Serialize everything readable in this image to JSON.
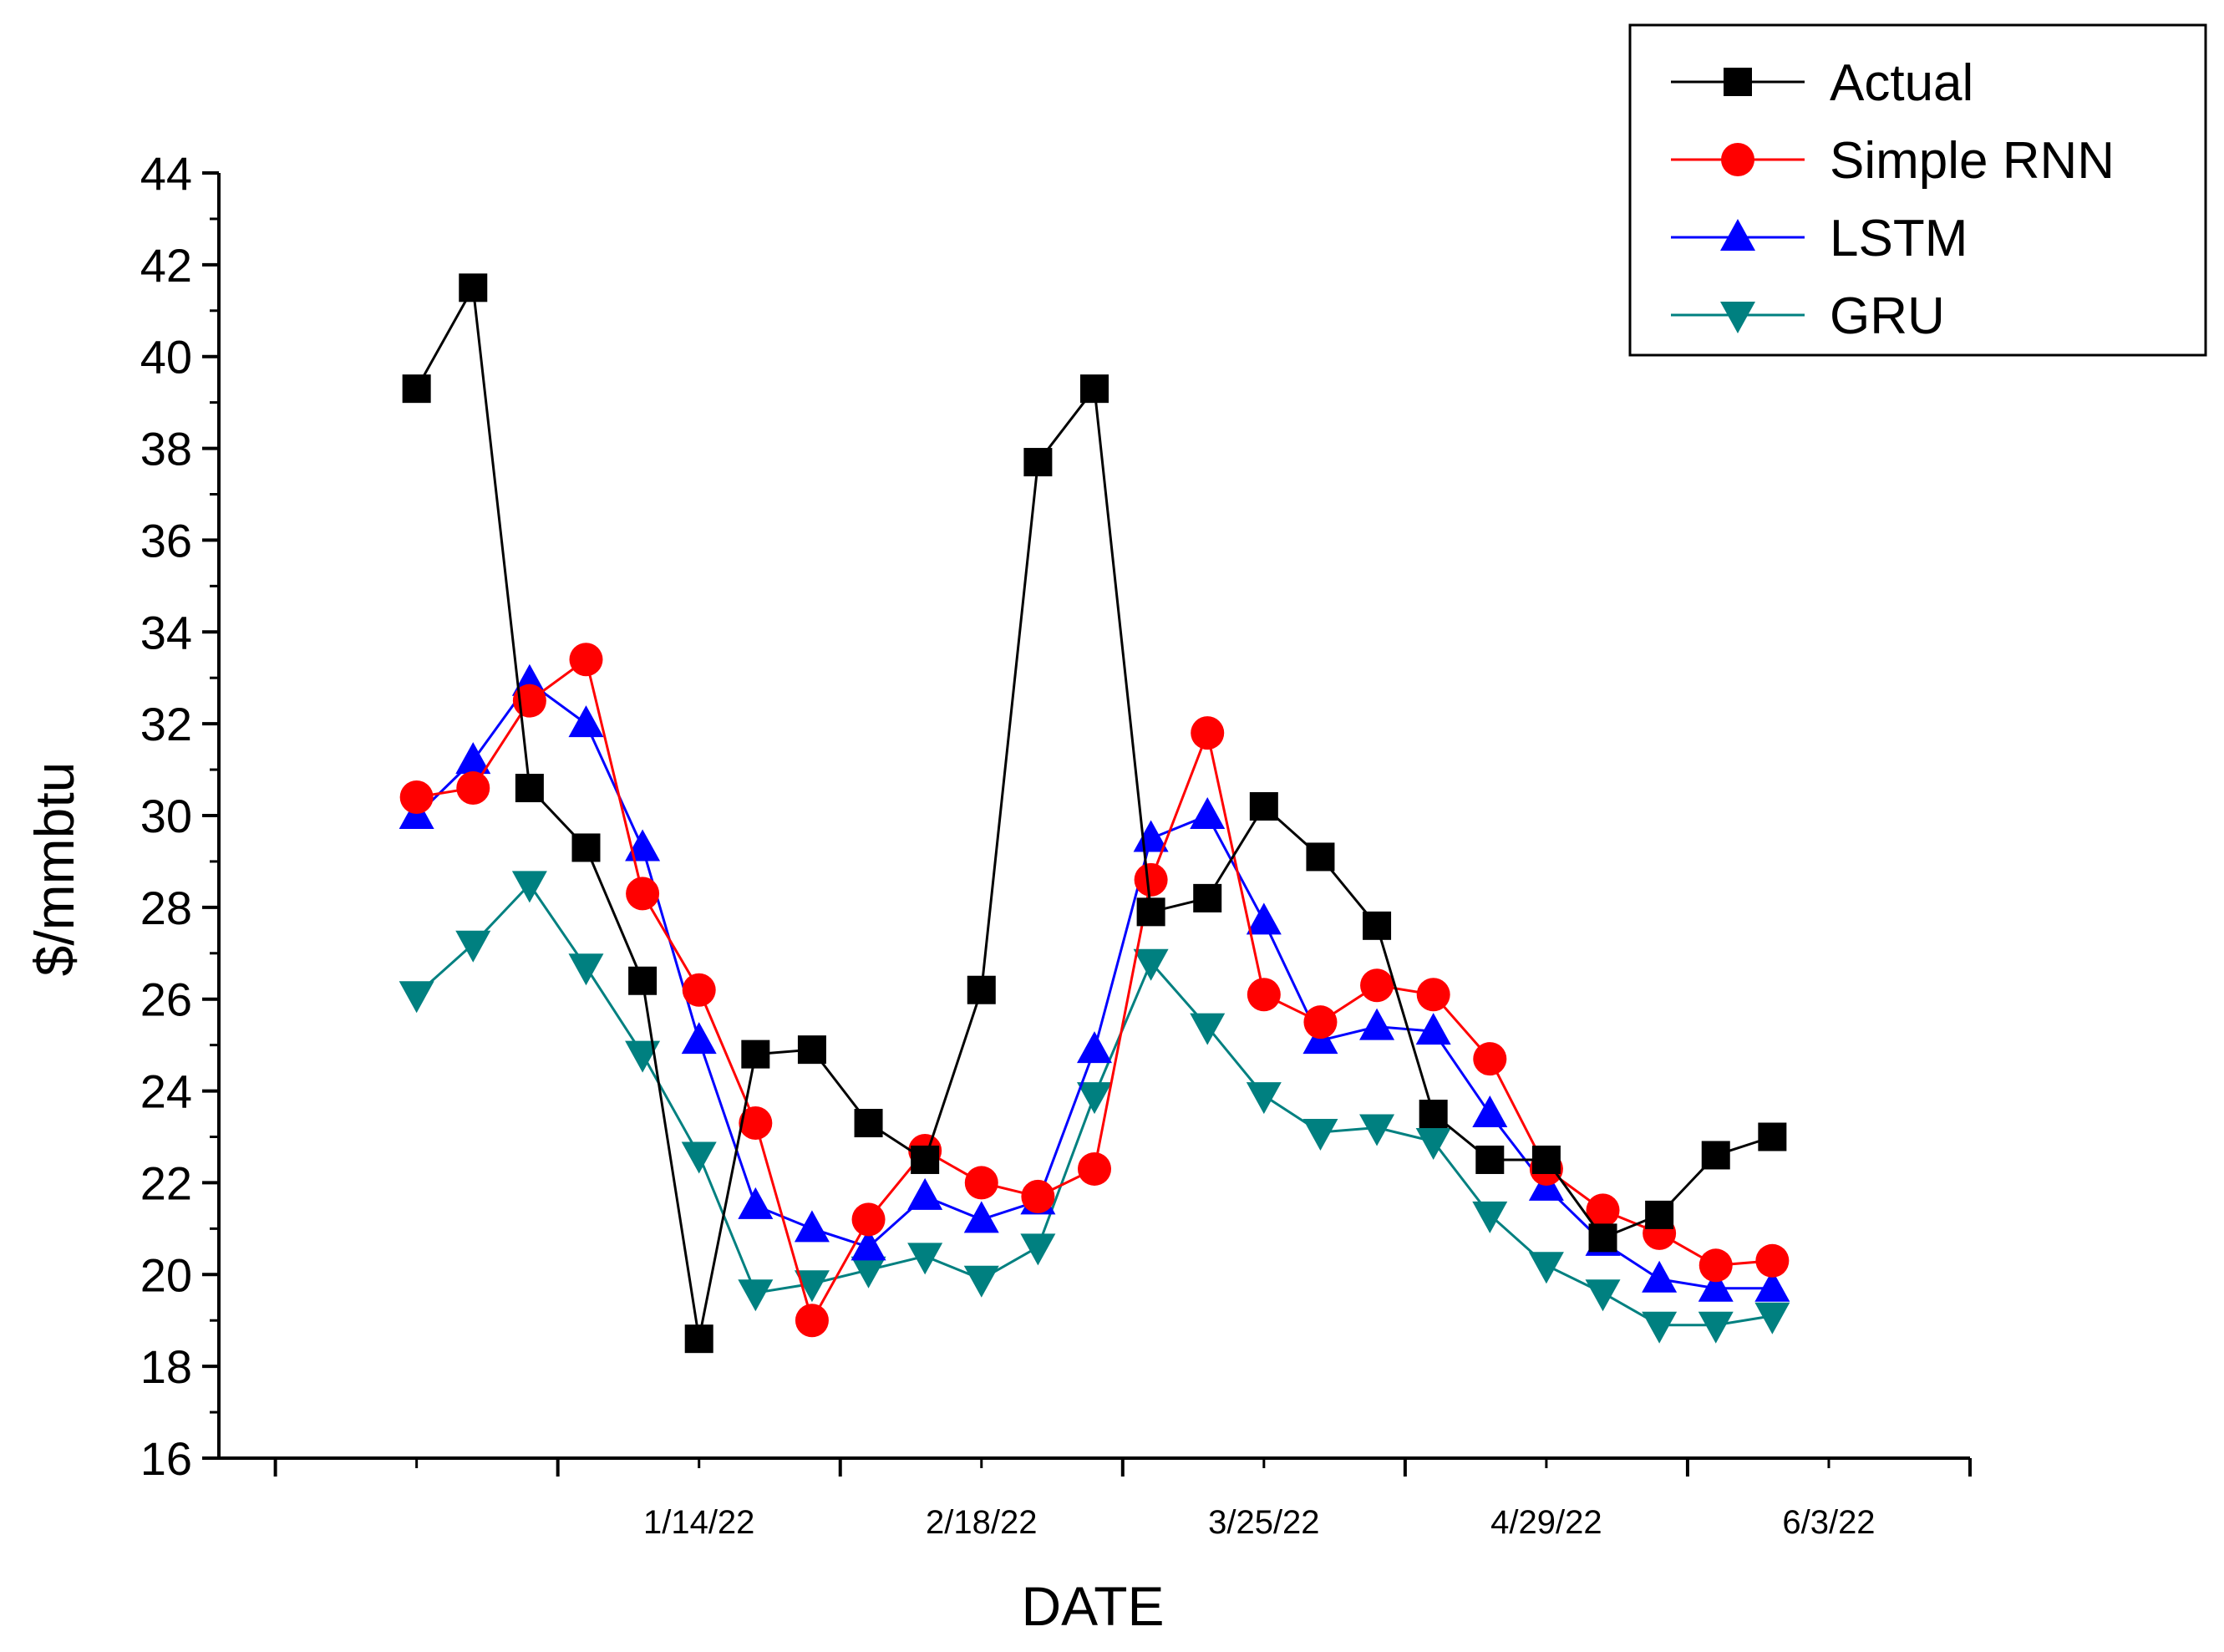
{
  "chart_data": {
    "type": "line",
    "title": "",
    "xlabel": "DATE",
    "ylabel": "$/mmbtu",
    "ylim": [
      16,
      44
    ],
    "y_ticks": [
      16,
      18,
      20,
      22,
      24,
      26,
      28,
      30,
      32,
      34,
      36,
      38,
      40,
      42,
      44
    ],
    "x_tick_labels": [
      "1/14/22",
      "2/18/22",
      "3/25/22",
      "4/29/22",
      "6/3/22"
    ],
    "x_tick_label_positions": [
      5,
      10,
      15,
      20,
      25
    ],
    "x_range": [
      -3.5,
      27.5
    ],
    "x": [
      0,
      1,
      2,
      3,
      4,
      5,
      6,
      7,
      8,
      9,
      10,
      11,
      12,
      13,
      14,
      15,
      16,
      17,
      18,
      19,
      20,
      21,
      22,
      23,
      24,
      25
    ],
    "grid": false,
    "legend_position": "top-right",
    "series": [
      {
        "name": "Actual",
        "color": "#000000",
        "marker": "square",
        "values": [
          39.3,
          41.5,
          30.6,
          29.3,
          26.4,
          18.6,
          24.8,
          24.9,
          23.3,
          22.5,
          26.2,
          37.7,
          39.3,
          27.9,
          28.2,
          30.2,
          29.1,
          27.6,
          23.5,
          22.5,
          22.5,
          20.8,
          21.3,
          22.6,
          23.0,
          null
        ]
      },
      {
        "name": "Simple RNN",
        "color": "#ff0000",
        "marker": "circle",
        "values": [
          30.4,
          30.6,
          32.5,
          33.4,
          28.3,
          26.2,
          23.3,
          19.0,
          21.2,
          22.7,
          22.0,
          21.7,
          22.3,
          28.6,
          31.8,
          26.1,
          25.5,
          26.3,
          26.1,
          24.7,
          22.3,
          21.4,
          20.9,
          20.2,
          20.3,
          null
        ]
      },
      {
        "name": "LSTM",
        "color": "#0000ff",
        "marker": "triangle-up",
        "values": [
          30.0,
          31.2,
          32.9,
          32.0,
          29.3,
          25.1,
          21.5,
          21.0,
          20.6,
          21.7,
          21.2,
          21.6,
          24.9,
          29.5,
          30.0,
          27.7,
          25.1,
          25.4,
          25.3,
          23.5,
          21.9,
          20.7,
          19.9,
          19.7,
          19.7,
          null
        ]
      },
      {
        "name": "GRU",
        "color": "#008080",
        "marker": "triangle-down",
        "values": [
          26.1,
          27.2,
          28.5,
          26.7,
          24.8,
          22.6,
          19.6,
          19.8,
          20.1,
          20.4,
          19.9,
          20.6,
          23.9,
          26.8,
          25.4,
          23.9,
          23.1,
          23.2,
          22.9,
          21.3,
          20.2,
          19.6,
          18.9,
          18.9,
          19.1,
          null
        ]
      }
    ]
  }
}
